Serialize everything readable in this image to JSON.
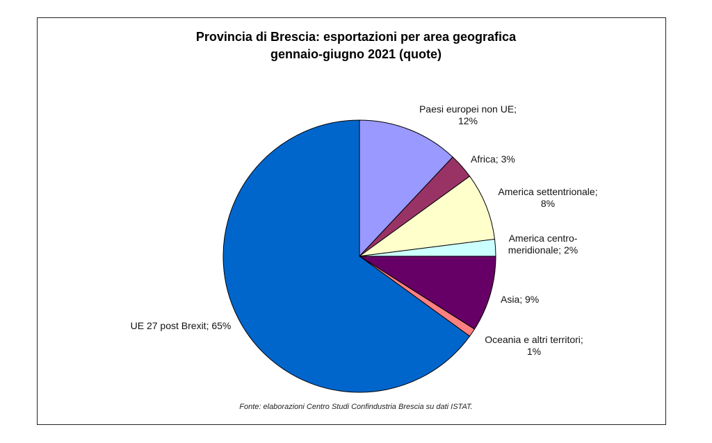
{
  "chart_data": {
    "type": "pie",
    "title_line1": "Provincia di Brescia: esportazioni per area geografica",
    "title_line2": "gennaio-giugno 2021 (quote)",
    "source": "Fonte: elaborazioni Centro Studi Confindustria Brescia su dati ISTAT.",
    "slices": [
      {
        "label_lines": [
          "Paesi europei non UE;",
          "12%"
        ],
        "value": 12,
        "color": "#9999ff"
      },
      {
        "label_lines": [
          "Africa; 3%"
        ],
        "value": 3,
        "color": "#993366"
      },
      {
        "label_lines": [
          "America settentrionale;",
          "8%"
        ],
        "value": 8,
        "color": "#ffffcc"
      },
      {
        "label_lines": [
          "America centro-",
          "meridionale; 2%"
        ],
        "value": 2,
        "color": "#ccffff"
      },
      {
        "label_lines": [
          "Asia; 9%"
        ],
        "value": 9,
        "color": "#660066"
      },
      {
        "label_lines": [
          "Oceania e altri territori;",
          "1%"
        ],
        "value": 1,
        "color": "#ff8080"
      },
      {
        "label_lines": [
          "UE 27 post Brexit; 65%"
        ],
        "value": 65,
        "color": "#0066cc"
      }
    ]
  }
}
